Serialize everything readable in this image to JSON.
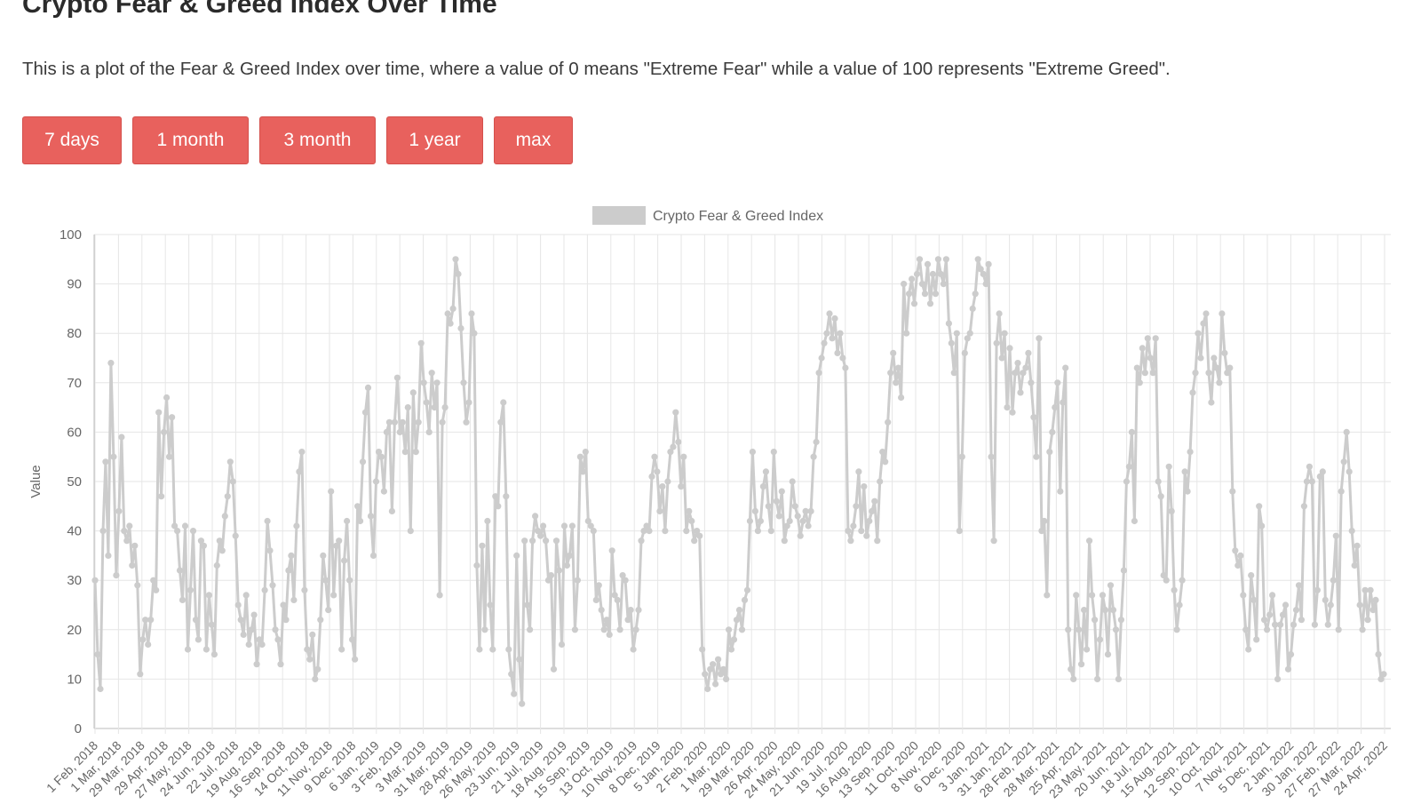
{
  "page": {
    "title": "Crypto Fear & Greed Index Over Time",
    "description": "This is a plot of the Fear & Greed Index over time, where a value of 0 means \"Extreme Fear\" while a value of 100 represents \"Extreme Greed\"."
  },
  "buttons": [
    {
      "label": "7 days"
    },
    {
      "label": "1 month"
    },
    {
      "label": "3 month"
    },
    {
      "label": "1 year"
    },
    {
      "label": "max"
    }
  ],
  "colors": {
    "button": "#e8615d",
    "series": "#cccccc",
    "grid": "#e6e6e6"
  },
  "chart_data": {
    "type": "line",
    "legend": "Crypto Fear & Greed Index",
    "legend_position": "top-center",
    "ylabel": "Value",
    "ylim": [
      0,
      100
    ],
    "yticks": [
      0,
      10,
      20,
      30,
      40,
      50,
      60,
      70,
      80,
      90,
      100
    ],
    "grid": true,
    "x_tick_labels": [
      "1 Feb, 2018",
      "1 Mar, 2018",
      "29 Mar, 2018",
      "29 Apr, 2018",
      "27 May, 2018",
      "24 Jun, 2018",
      "22 Jul, 2018",
      "19 Aug, 2018",
      "16 Sep, 2018",
      "14 Oct, 2018",
      "11 Nov, 2018",
      "9 Dec, 2018",
      "6 Jan, 2019",
      "3 Feb, 2019",
      "3 Mar, 2019",
      "31 Mar, 2019",
      "28 Apr, 2019",
      "26 May, 2019",
      "23 Jun, 2019",
      "21 Jul, 2019",
      "18 Aug, 2019",
      "15 Sep, 2019",
      "13 Oct, 2019",
      "10 Nov, 2019",
      "8 Dec, 2019",
      "5 Jan, 2020",
      "2 Feb, 2020",
      "1 Mar, 2020",
      "29 Mar, 2020",
      "26 Apr, 2020",
      "24 May, 2020",
      "21 Jun, 2020",
      "19 Jul, 2020",
      "16 Aug, 2020",
      "13 Sep, 2020",
      "11 Oct, 2020",
      "8 Nov, 2020",
      "6 Dec, 2020",
      "3 Jan, 2021",
      "31 Jan, 2021",
      "28 Feb, 2021",
      "28 Mar, 2021",
      "25 Apr, 2021",
      "23 May, 2021",
      "20 Jun, 2021",
      "18 Jul, 2021",
      "15 Aug, 2021",
      "12 Sep, 2021",
      "10 Oct, 2021",
      "7 Nov, 2021",
      "5 Dec, 2021",
      "2 Jan, 2022",
      "30 Jan, 2022",
      "27 Feb, 2022",
      "27 Mar, 2022",
      "24 Apr, 2022"
    ],
    "series": [
      {
        "name": "Crypto Fear & Greed Index",
        "values": [
          30,
          15,
          8,
          40,
          54,
          35,
          74,
          55,
          31,
          44,
          59,
          40,
          38,
          41,
          33,
          37,
          29,
          11,
          18,
          22,
          17,
          22,
          30,
          28,
          64,
          47,
          60,
          67,
          55,
          63,
          41,
          40,
          32,
          26,
          41,
          16,
          28,
          40,
          22,
          18,
          38,
          37,
          16,
          27,
          21,
          15,
          33,
          38,
          36,
          43,
          47,
          54,
          50,
          39,
          25,
          22,
          19,
          27,
          17,
          20,
          23,
          13,
          18,
          17,
          28,
          42,
          36,
          29,
          20,
          18,
          13,
          25,
          22,
          32,
          35,
          26,
          41,
          52,
          56,
          28,
          16,
          14,
          19,
          10,
          12,
          22,
          35,
          30,
          24,
          48,
          27,
          37,
          38,
          16,
          34,
          42,
          30,
          18,
          14,
          45,
          42,
          54,
          64,
          69,
          43,
          35,
          50,
          56,
          55,
          48,
          60,
          62,
          44,
          62,
          71,
          60,
          62,
          56,
          65,
          40,
          68,
          56,
          62,
          78,
          70,
          66,
          60,
          72,
          65,
          70,
          27,
          62,
          65,
          84,
          82,
          85,
          95,
          92,
          81,
          70,
          62,
          66,
          84,
          80,
          33,
          16,
          37,
          20,
          42,
          25,
          16,
          47,
          45,
          62,
          66,
          47,
          16,
          11,
          7,
          35,
          14,
          5,
          38,
          25,
          20,
          38,
          43,
          40,
          39,
          41,
          38,
          30,
          31,
          12,
          38,
          32,
          17,
          41,
          33,
          35,
          41,
          20,
          30,
          55,
          52,
          56,
          42,
          41,
          40,
          26,
          29,
          24,
          20,
          22,
          19,
          36,
          27,
          26,
          20,
          31,
          30,
          22,
          24,
          16,
          20,
          24,
          38,
          40,
          41,
          40,
          51,
          55,
          52,
          44,
          49,
          40,
          50,
          56,
          57,
          64,
          58,
          49,
          55,
          40,
          44,
          42,
          38,
          40,
          39,
          16,
          11,
          8,
          12,
          13,
          9,
          14,
          11,
          12,
          10,
          20,
          16,
          18,
          22,
          24,
          20,
          26,
          28,
          42,
          56,
          44,
          40,
          42,
          49,
          52,
          45,
          40,
          56,
          46,
          43,
          48,
          38,
          41,
          42,
          50,
          45,
          43,
          39,
          42,
          44,
          41,
          44,
          55,
          58,
          72,
          75,
          78,
          80,
          84,
          79,
          83,
          76,
          80,
          75,
          73,
          40,
          38,
          41,
          45,
          52,
          40,
          49,
          39,
          42,
          44,
          46,
          38,
          50,
          56,
          54,
          62,
          72,
          76,
          70,
          73,
          67,
          90,
          80,
          88,
          91,
          86,
          92,
          95,
          90,
          88,
          94,
          86,
          92,
          88,
          95,
          92,
          90,
          95,
          82,
          78,
          72,
          80,
          40,
          55,
          76,
          79,
          80,
          85,
          88,
          95,
          93,
          92,
          90,
          94,
          55,
          38,
          78,
          84,
          75,
          80,
          65,
          77,
          64,
          72,
          74,
          68,
          72,
          73,
          76,
          70,
          63,
          55,
          79,
          40,
          42,
          27,
          56,
          60,
          65,
          70,
          48,
          66,
          73,
          20,
          12,
          10,
          27,
          20,
          13,
          24,
          16,
          38,
          27,
          22,
          10,
          18,
          27,
          24,
          15,
          29,
          24,
          20,
          10,
          22,
          32,
          50,
          53,
          60,
          42,
          73,
          70,
          77,
          72,
          79,
          75,
          72,
          79,
          50,
          47,
          31,
          30,
          53,
          44,
          28,
          20,
          25,
          30,
          52,
          48,
          56,
          68,
          72,
          80,
          75,
          82,
          84,
          72,
          66,
          75,
          73,
          70,
          84,
          76,
          72,
          73,
          48,
          36,
          33,
          35,
          27,
          20,
          16,
          31,
          26,
          18,
          45,
          41,
          22,
          20,
          23,
          27,
          21,
          10,
          21,
          23,
          25,
          12,
          15,
          21,
          24,
          29,
          22,
          45,
          50,
          53,
          50,
          21,
          28,
          51,
          52,
          26,
          21,
          25,
          30,
          39,
          20,
          48,
          54,
          60,
          52,
          40,
          33,
          37,
          25,
          20,
          28,
          22,
          28,
          24,
          26,
          15,
          10,
          11
        ]
      }
    ]
  }
}
